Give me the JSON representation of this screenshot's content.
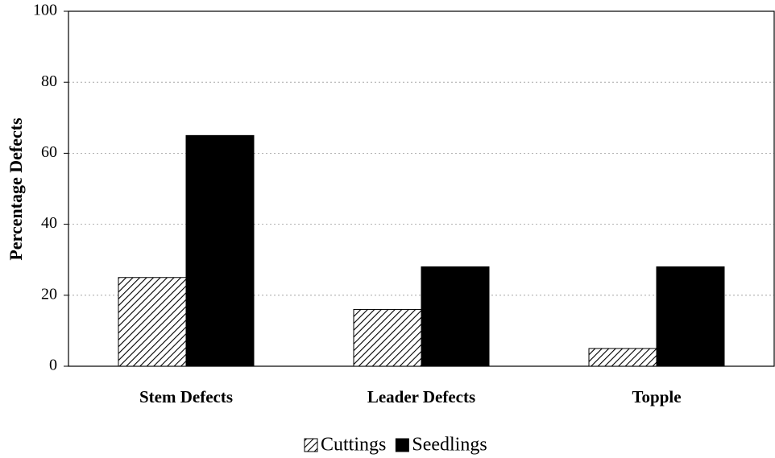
{
  "chart_data": {
    "type": "bar",
    "y_label": "Percentage Defects",
    "categories": [
      "Stem Defects",
      "Leader Defects",
      "Topple"
    ],
    "series": [
      {
        "name": "Cuttings",
        "color": "#000000",
        "pattern": "diagonal-hatch",
        "values": [
          25,
          16,
          5
        ]
      },
      {
        "name": "Seedlings",
        "color": "#000000",
        "pattern": "solid",
        "values": [
          65,
          28,
          28
        ]
      }
    ],
    "ylim": [
      0,
      100
    ],
    "yticks": [
      0,
      20,
      40,
      60,
      80,
      100
    ],
    "grid": true,
    "legend": "bottom"
  }
}
